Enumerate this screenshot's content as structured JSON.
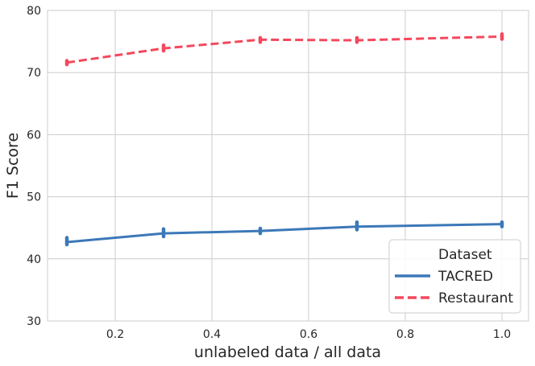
{
  "chart_data": {
    "type": "line",
    "xlabel": "unlabeled data / all data",
    "ylabel": "F1 Score",
    "xlim": [
      0.06,
      1.055
    ],
    "ylim": [
      30,
      80
    ],
    "x_ticks": [
      0.2,
      0.4,
      0.6,
      0.8,
      1.0
    ],
    "x_tick_labels": [
      "0.2",
      "0.4",
      "0.6",
      "0.8",
      "1.0"
    ],
    "y_ticks": [
      30,
      40,
      50,
      60,
      70,
      80
    ],
    "y_tick_labels": [
      "30",
      "40",
      "50",
      "60",
      "70",
      "80"
    ],
    "grid": true,
    "x": [
      0.1,
      0.3,
      0.5,
      0.7,
      1.0
    ],
    "series": [
      {
        "name": "TACRED",
        "color": "#3c78b8",
        "style": "solid",
        "values": [
          42.7,
          44.1,
          44.5,
          45.2,
          45.6
        ],
        "error_low": [
          42.3,
          43.6,
          44.1,
          44.7,
          45.2
        ],
        "error_high": [
          43.4,
          44.8,
          44.9,
          45.9,
          45.9
        ]
      },
      {
        "name": "Restaurant",
        "color": "#f4485d",
        "style": "dashed",
        "values": [
          71.6,
          73.9,
          75.3,
          75.2,
          75.8
        ],
        "error_low": [
          71.3,
          73.5,
          74.9,
          74.9,
          75.4
        ],
        "error_high": [
          71.9,
          74.4,
          75.6,
          75.6,
          76.2
        ]
      }
    ],
    "legend": {
      "title": "Dataset",
      "position": "lower-right"
    }
  }
}
